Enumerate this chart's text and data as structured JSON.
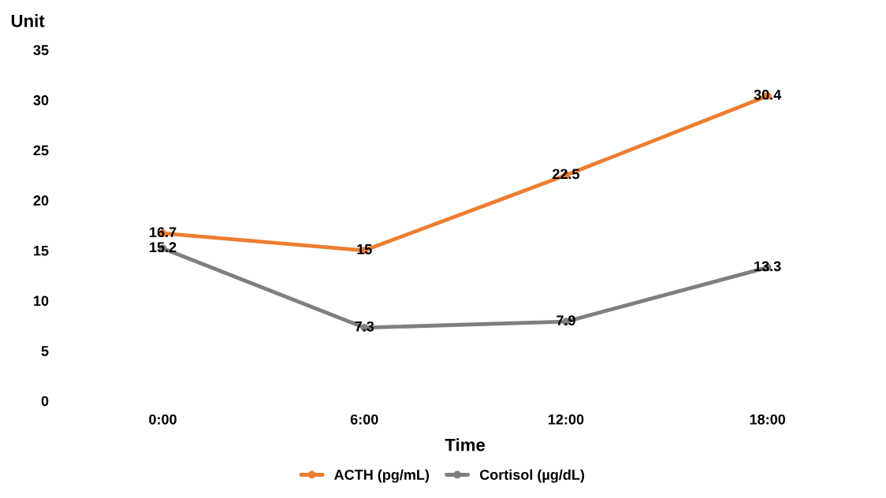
{
  "chart_data": {
    "type": "line",
    "xlabel": "Time",
    "ylabel": "Unit",
    "categories": [
      "0:00",
      "6:00",
      "12:00",
      "18:00"
    ],
    "series": [
      {
        "name": "ACTH (pg/mL)",
        "color": "#ed7d31",
        "values": [
          16.7,
          15,
          22.5,
          30.4
        ]
      },
      {
        "name": "Cortisol (µg/dL)",
        "color": "#7f7f7f",
        "values": [
          15.2,
          7.3,
          7.9,
          13.3
        ]
      }
    ],
    "ylim": [
      0,
      35
    ],
    "yticks": [
      0,
      5,
      10,
      15,
      20,
      25,
      30,
      35
    ],
    "data_labels": true,
    "grid": false,
    "legend": "bottom",
    "marker": "circle",
    "line_style": "solid"
  }
}
